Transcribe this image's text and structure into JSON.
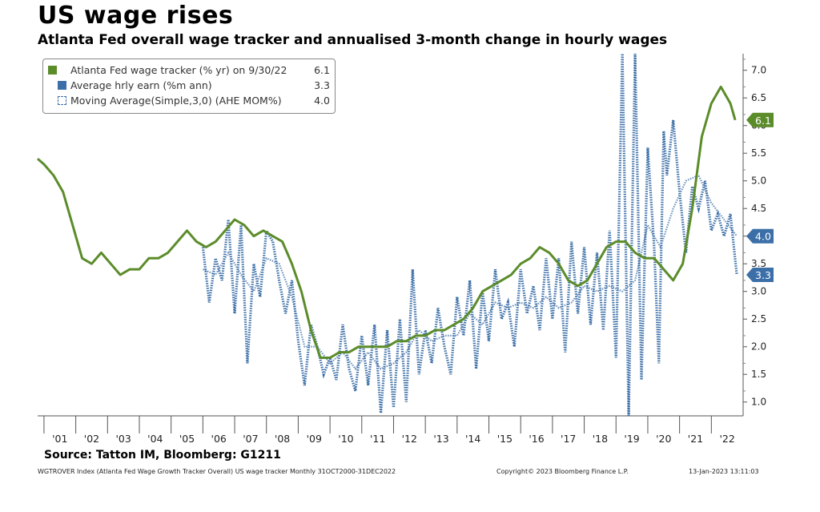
{
  "header": {
    "title": "US wage rises",
    "subtitle": "Atlanta Fed overall wage tracker and annualised 3-month change in hourly wages"
  },
  "legend": [
    {
      "label": "Atlanta Fed wage tracker (% yr) on 9/30/22",
      "value": "6.1",
      "color": "#5b8c2a"
    },
    {
      "label": "Average hrly earn (%m  ann)",
      "value": "3.3",
      "color": "#3c6fa8"
    },
    {
      "label": "Moving Average(Simple,3,0) (AHE MOM%)",
      "value": "4.0",
      "color": "#3c6fa8"
    }
  ],
  "source": "Source: Tatton IM, Bloomberg: G1211",
  "footer": {
    "left": "WGTROVER Index (Atlanta Fed Wage Growth Tracker Overall) US wage tracker  Monthly 31OCT2000-31DEC2022",
    "middle": "Copyright© 2023 Bloomberg Finance L.P.",
    "right": "13-Jan-2023 13:11:03"
  },
  "value_tags": [
    {
      "text": "6.1",
      "value": 6.1,
      "color": "#5b8c2a"
    },
    {
      "text": "4.0",
      "value": 4.0,
      "color": "#3c6fa8"
    },
    {
      "text": "3.3",
      "value": 3.3,
      "color": "#3c6fa8"
    }
  ],
  "chart_data": {
    "type": "line",
    "xlabels": [
      "'01",
      "'02",
      "'03",
      "'04",
      "'05",
      "'06",
      "'07",
      "'08",
      "'09",
      "'10",
      "'11",
      "'12",
      "'13",
      "'14",
      "'15",
      "'16",
      "'17",
      "'18",
      "'19",
      "'20",
      "'21",
      "'22"
    ],
    "xlim": [
      2000.8,
      2023.0
    ],
    "ylim": [
      0.75,
      7.3
    ],
    "yticks": [
      "1.0",
      "1.5",
      "2.0",
      "2.5",
      "3.0",
      "3.5",
      "4.0",
      "4.5",
      "5.0",
      "5.5",
      "6.0",
      "6.5",
      "7.0"
    ],
    "series": [
      {
        "name": "Atlanta Fed wage tracker (% yr) on 9/30/22",
        "style": "solid",
        "color": "#5b8c2a",
        "x": [
          2000.8,
          2001.0,
          2001.3,
          2001.6,
          2001.9,
          2002.2,
          2002.5,
          2002.8,
          2003.1,
          2003.4,
          2003.7,
          2004.0,
          2004.3,
          2004.6,
          2004.9,
          2005.2,
          2005.5,
          2005.8,
          2006.1,
          2006.4,
          2006.7,
          2007.0,
          2007.3,
          2007.6,
          2007.9,
          2008.2,
          2008.5,
          2008.8,
          2009.1,
          2009.4,
          2009.7,
          2010.0,
          2010.3,
          2010.6,
          2010.9,
          2011.2,
          2011.5,
          2011.8,
          2012.1,
          2012.4,
          2012.7,
          2013.0,
          2013.3,
          2013.6,
          2013.9,
          2014.2,
          2014.5,
          2014.8,
          2015.1,
          2015.4,
          2015.7,
          2016.0,
          2016.3,
          2016.6,
          2016.9,
          2017.2,
          2017.5,
          2017.8,
          2018.1,
          2018.4,
          2018.7,
          2019.0,
          2019.3,
          2019.6,
          2019.9,
          2020.2,
          2020.5,
          2020.8,
          2021.1,
          2021.4,
          2021.7,
          2022.0,
          2022.3,
          2022.6,
          2022.75
        ],
        "y": [
          5.4,
          5.3,
          5.1,
          4.8,
          4.2,
          3.6,
          3.5,
          3.7,
          3.5,
          3.3,
          3.4,
          3.4,
          3.6,
          3.6,
          3.7,
          3.9,
          4.1,
          3.9,
          3.8,
          3.9,
          4.1,
          4.3,
          4.2,
          4.0,
          4.1,
          4.0,
          3.9,
          3.5,
          3.0,
          2.3,
          1.8,
          1.8,
          1.9,
          1.9,
          2.0,
          2.0,
          2.0,
          2.0,
          2.1,
          2.1,
          2.2,
          2.2,
          2.3,
          2.3,
          2.4,
          2.5,
          2.7,
          3.0,
          3.1,
          3.2,
          3.3,
          3.5,
          3.6,
          3.8,
          3.7,
          3.5,
          3.2,
          3.1,
          3.2,
          3.5,
          3.8,
          3.9,
          3.9,
          3.7,
          3.6,
          3.6,
          3.4,
          3.2,
          3.5,
          4.5,
          5.8,
          6.4,
          6.7,
          6.4,
          6.1
        ]
      },
      {
        "name": "Average hrly earn (%m  ann)",
        "style": "dotted",
        "color": "#3c6fa8",
        "x": [
          2006.0,
          2006.2,
          2006.4,
          2006.6,
          2006.8,
          2007.0,
          2007.2,
          2007.4,
          2007.6,
          2007.8,
          2008.0,
          2008.2,
          2008.4,
          2008.6,
          2008.8,
          2009.0,
          2009.2,
          2009.4,
          2009.6,
          2009.8,
          2010.0,
          2010.2,
          2010.4,
          2010.6,
          2010.8,
          2011.0,
          2011.2,
          2011.4,
          2011.6,
          2011.8,
          2012.0,
          2012.2,
          2012.4,
          2012.6,
          2012.8,
          2013.0,
          2013.2,
          2013.4,
          2013.6,
          2013.8,
          2014.0,
          2014.2,
          2014.4,
          2014.6,
          2014.8,
          2015.0,
          2015.2,
          2015.4,
          2015.6,
          2015.8,
          2016.0,
          2016.2,
          2016.4,
          2016.6,
          2016.8,
          2017.0,
          2017.2,
          2017.4,
          2017.6,
          2017.8,
          2018.0,
          2018.2,
          2018.4,
          2018.6,
          2018.8,
          2019.0,
          2019.2,
          2019.4,
          2019.6,
          2019.8,
          2020.0,
          2020.2,
          2020.35,
          2020.5,
          2020.6,
          2020.8,
          2021.0,
          2021.2,
          2021.4,
          2021.6,
          2021.8,
          2022.0,
          2022.2,
          2022.4,
          2022.6,
          2022.8
        ],
        "y": [
          3.8,
          2.8,
          3.6,
          3.2,
          4.3,
          2.6,
          4.2,
          1.7,
          3.5,
          2.9,
          4.1,
          3.9,
          3.2,
          2.6,
          3.2,
          2.1,
          1.3,
          2.4,
          2.0,
          1.5,
          1.8,
          1.4,
          2.4,
          1.6,
          1.2,
          2.2,
          1.3,
          2.4,
          0.8,
          2.3,
          0.9,
          2.5,
          1.0,
          3.4,
          1.5,
          2.3,
          1.7,
          2.7,
          2.0,
          1.5,
          2.9,
          2.2,
          3.2,
          1.6,
          3.0,
          2.1,
          3.4,
          2.5,
          2.8,
          2.0,
          3.4,
          2.6,
          3.1,
          2.3,
          3.6,
          2.5,
          3.6,
          1.9,
          3.9,
          2.6,
          3.8,
          2.4,
          3.7,
          2.3,
          4.1,
          1.8,
          7.3,
          0.75,
          7.3,
          1.4,
          5.6,
          3.8,
          1.7,
          5.9,
          5.1,
          6.1,
          4.8,
          3.7,
          4.9,
          4.5,
          5.0,
          4.1,
          4.4,
          4.0,
          4.4,
          3.3
        ]
      },
      {
        "name": "Moving Average(Simple,3,0) (AHE MOM%)",
        "style": "dotted",
        "color": "#3c6fa8",
        "x": [
          2006.0,
          2006.4,
          2006.8,
          2007.2,
          2007.6,
          2008.0,
          2008.4,
          2008.8,
          2009.2,
          2009.6,
          2010.0,
          2010.4,
          2010.8,
          2011.2,
          2011.6,
          2012.0,
          2012.4,
          2012.8,
          2013.2,
          2013.6,
          2014.0,
          2014.4,
          2014.8,
          2015.2,
          2015.6,
          2016.0,
          2016.4,
          2016.8,
          2017.2,
          2017.6,
          2018.0,
          2018.4,
          2018.8,
          2019.2,
          2019.6,
          2020.0,
          2020.4,
          2020.8,
          2021.2,
          2021.6,
          2022.0,
          2022.4,
          2022.8
        ],
        "y": [
          3.4,
          3.3,
          3.7,
          3.3,
          3.0,
          3.6,
          3.5,
          2.9,
          2.0,
          2.0,
          1.7,
          1.9,
          1.6,
          1.9,
          1.6,
          1.7,
          1.9,
          2.3,
          2.1,
          2.2,
          2.2,
          2.6,
          2.4,
          2.8,
          2.7,
          2.8,
          2.7,
          2.9,
          2.7,
          2.8,
          3.1,
          3.0,
          3.1,
          3.0,
          3.2,
          4.2,
          3.8,
          4.5,
          5.0,
          5.1,
          4.6,
          4.3,
          4.0
        ]
      }
    ]
  }
}
